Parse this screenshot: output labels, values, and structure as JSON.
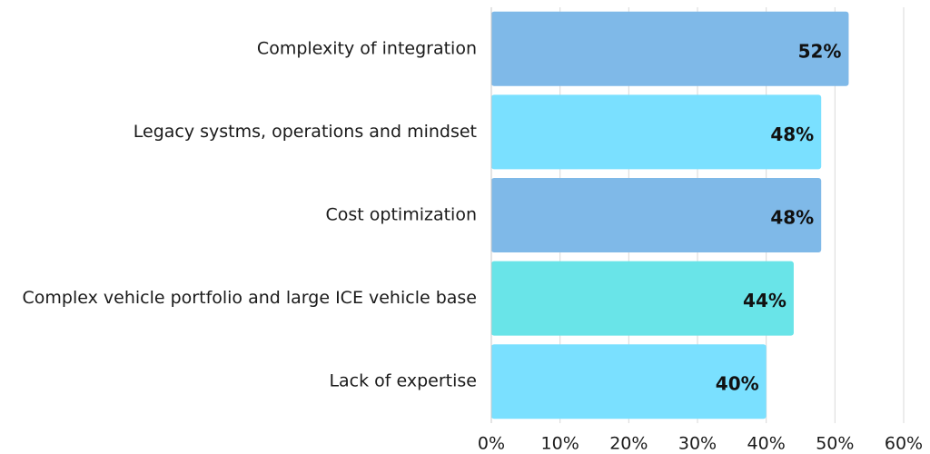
{
  "chart_data": {
    "type": "bar",
    "orientation": "horizontal",
    "categories": [
      "Complexity of integration",
      "Legacy systms, operations and mindset",
      "Cost optimization",
      "Complex vehicle portfolio and large ICE vehicle base",
      "Lack of expertise"
    ],
    "values": [
      52,
      48,
      48,
      44,
      40
    ],
    "data_labels": [
      "52%",
      "48%",
      "48%",
      "44%",
      "40%"
    ],
    "bar_colors": [
      "#7fb9e8",
      "#7ae0ff",
      "#7fb9e8",
      "#69e4e8",
      "#7ae0ff"
    ],
    "xlim": [
      0,
      60
    ],
    "x_ticks": [
      0,
      10,
      20,
      30,
      40,
      50,
      60
    ],
    "x_tick_labels": [
      "0%",
      "10%",
      "20%",
      "30%",
      "40%",
      "50%",
      "60%"
    ],
    "grid": true,
    "legend": false
  }
}
